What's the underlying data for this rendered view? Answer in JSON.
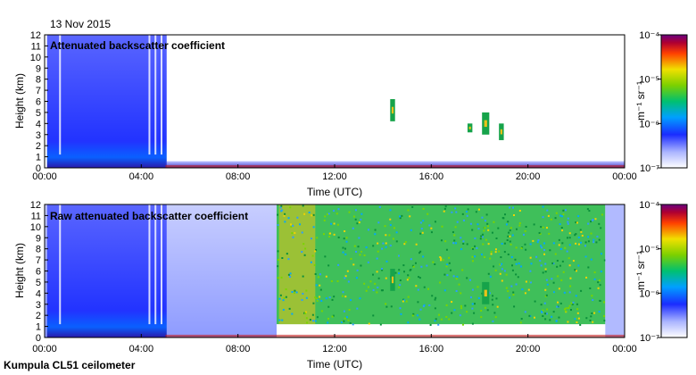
{
  "date_label": "13 Nov 2015",
  "footer": "Kumpula CL51 ceilometer",
  "chart_data": [
    {
      "type": "heatmap",
      "title": "Attenuated backscatter coefficient",
      "xlabel": "Time (UTC)",
      "ylabel": "Height (km)",
      "x_ticks": [
        "00:00",
        "04:00",
        "08:00",
        "12:00",
        "16:00",
        "20:00",
        "00:00"
      ],
      "xlim_hours": [
        0,
        24
      ],
      "ylim": [
        0,
        12
      ],
      "y_ticks": [
        0,
        1,
        2,
        3,
        4,
        5,
        6,
        7,
        8,
        9,
        10,
        11,
        12
      ],
      "colorbar": {
        "label": "m⁻¹ sr⁻¹",
        "scale": "log",
        "range": [
          1e-07,
          0.0001
        ],
        "ticks": [
          "10⁻⁷",
          "10⁻⁶",
          "10⁻⁵",
          "10⁻⁴"
        ]
      },
      "features": [
        {
          "name": "dense backscatter column",
          "start_hour": 0.1,
          "end_hour": 5.05,
          "height_range_km": [
            0,
            12
          ]
        },
        {
          "name": "low boundary layer",
          "start_hour": 5.0,
          "end_hour": 24,
          "height_range_km": [
            0,
            0.6
          ]
        },
        {
          "name": "cloud patch",
          "start_hour": 14.3,
          "end_hour": 14.5,
          "height_range_km": [
            4.2,
            6.2
          ]
        },
        {
          "name": "cloud patch",
          "start_hour": 17.5,
          "end_hour": 17.7,
          "height_range_km": [
            3.2,
            4.0
          ]
        },
        {
          "name": "cloud patch",
          "start_hour": 18.1,
          "end_hour": 18.4,
          "height_range_km": [
            3.0,
            5.0
          ]
        },
        {
          "name": "cloud patch",
          "start_hour": 18.8,
          "end_hour": 19.0,
          "height_range_km": [
            2.5,
            4.0
          ]
        }
      ]
    },
    {
      "type": "heatmap",
      "title": "Raw attenuated backscatter coefficient",
      "xlabel": "Time (UTC)",
      "ylabel": "Height (km)",
      "x_ticks": [
        "00:00",
        "04:00",
        "08:00",
        "12:00",
        "16:00",
        "20:00",
        "00:00"
      ],
      "xlim_hours": [
        0,
        24
      ],
      "ylim": [
        0,
        12
      ],
      "y_ticks": [
        0,
        1,
        2,
        3,
        4,
        5,
        6,
        7,
        8,
        9,
        10,
        11,
        12
      ],
      "colorbar": {
        "label": "m⁻¹ sr⁻¹",
        "scale": "log",
        "range": [
          1e-07,
          0.0001
        ],
        "ticks": [
          "10⁻⁷",
          "10⁻⁶",
          "10⁻⁵",
          "10⁻⁴"
        ]
      },
      "features": [
        {
          "name": "noise background",
          "start_hour": 0,
          "end_hour": 9.6,
          "height_range_km": [
            0,
            12
          ]
        },
        {
          "name": "dense backscatter column",
          "start_hour": 0.1,
          "end_hour": 5.05,
          "height_range_km": [
            0,
            12
          ]
        },
        {
          "name": "daytime solar noise",
          "start_hour": 9.6,
          "end_hour": 23.2,
          "height_range_km": [
            1.2,
            12
          ]
        },
        {
          "name": "night noise",
          "start_hour": 23.2,
          "end_hour": 24,
          "height_range_km": [
            0,
            12
          ]
        },
        {
          "name": "cloud patch",
          "start_hour": 14.3,
          "end_hour": 14.5,
          "height_range_km": [
            4.2,
            6.2
          ]
        },
        {
          "name": "cloud patch",
          "start_hour": 18.1,
          "end_hour": 18.4,
          "height_range_km": [
            3.0,
            5.0
          ]
        }
      ]
    }
  ]
}
